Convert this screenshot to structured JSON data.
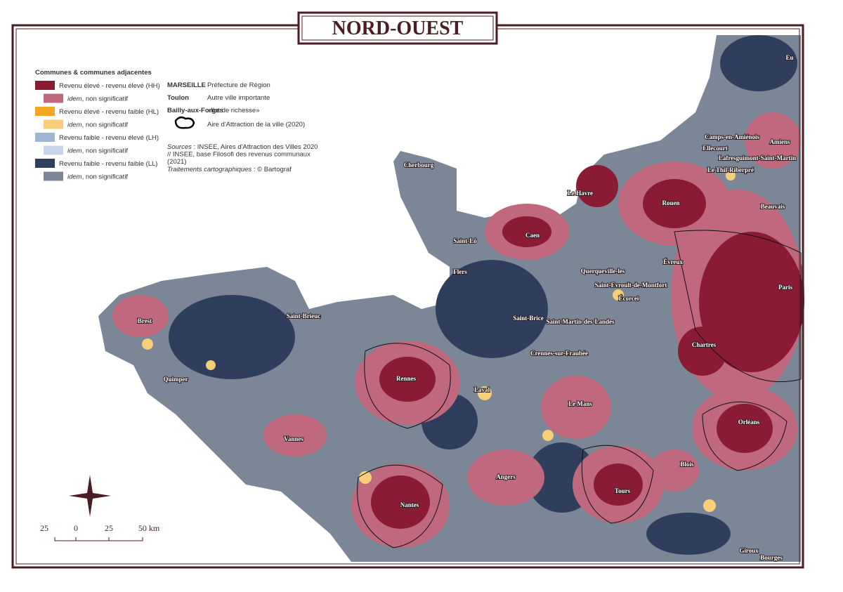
{
  "header": {
    "title": "NORD-OUEST"
  },
  "legend": {
    "heading": "Communes & communes adjacentes",
    "items": [
      {
        "label": "Revenu élevé - revenu élevé (HH)",
        "color": "#8b1a34"
      },
      {
        "italic": "idem",
        "label": ", non significatif",
        "color": "#c0687e"
      },
      {
        "label": "Revenu élevé - revenu faible (HL)",
        "color": "#f5a623"
      },
      {
        "italic": "idem",
        "label": ", non significatif",
        "color": "#f8cf78"
      },
      {
        "label": "Revenu faible - revenu élevé (LH)",
        "color": "#9db6d4"
      },
      {
        "italic": "idem",
        "label": ", non significatif",
        "color": "#c6d6e8"
      },
      {
        "label": "Revenu faible - revenu faible (LL)",
        "color": "#2e3e5c"
      },
      {
        "italic": "idem",
        "label": ", non significatif",
        "color": "#7b8797"
      }
    ]
  },
  "symbols": [
    {
      "sample": "MARSEILLE",
      "label": "Préfecture de Région"
    },
    {
      "sample": "Toulon",
      "label": "Autre ville importante"
    },
    {
      "sample": "Bailly-aux-Forges",
      "label": "«Ilot de richesse»"
    },
    {
      "label": "Aire d'Attraction de la ville (2020)"
    }
  ],
  "sources": {
    "italic": "Sources",
    "lines": [
      " : INSEE, Aires d'Attraction des Villes 2020",
      "// INSEE, base Filosofi des revenus communaux",
      "(2021)"
    ],
    "credit_italic": "Traitements cartographiques",
    "credit": " : © Bartograf"
  },
  "scale": [
    "25",
    "0",
    "25",
    "50 km"
  ],
  "places": [
    "Cherbourg",
    "Le Havre",
    "Caen",
    "Saint-Lô",
    "Rouen",
    "Évreux",
    "Paris",
    "Brest",
    "Saint-Brieuc",
    "Quimper",
    "Rennes",
    "Laval",
    "Le Mans",
    "Vannes",
    "Nantes",
    "Angers",
    "Tours",
    "Blois",
    "Orléans",
    "Chartres",
    "Bourges",
    "Eu",
    "Amiens",
    "Beauvais",
    "Camps-en-Amiénois",
    "Ellecourt",
    "Lafresguimont-Saint-Martin",
    "Le Thil-Riberpré",
    "Flers",
    "Querqueville-les",
    "Saint-Evroult-de-Montfort",
    "Écorcei",
    "Saint-Brice",
    "Saint-Martin-des-Landes",
    "Crennes-sur-Fraubée",
    "Giroux"
  ]
}
